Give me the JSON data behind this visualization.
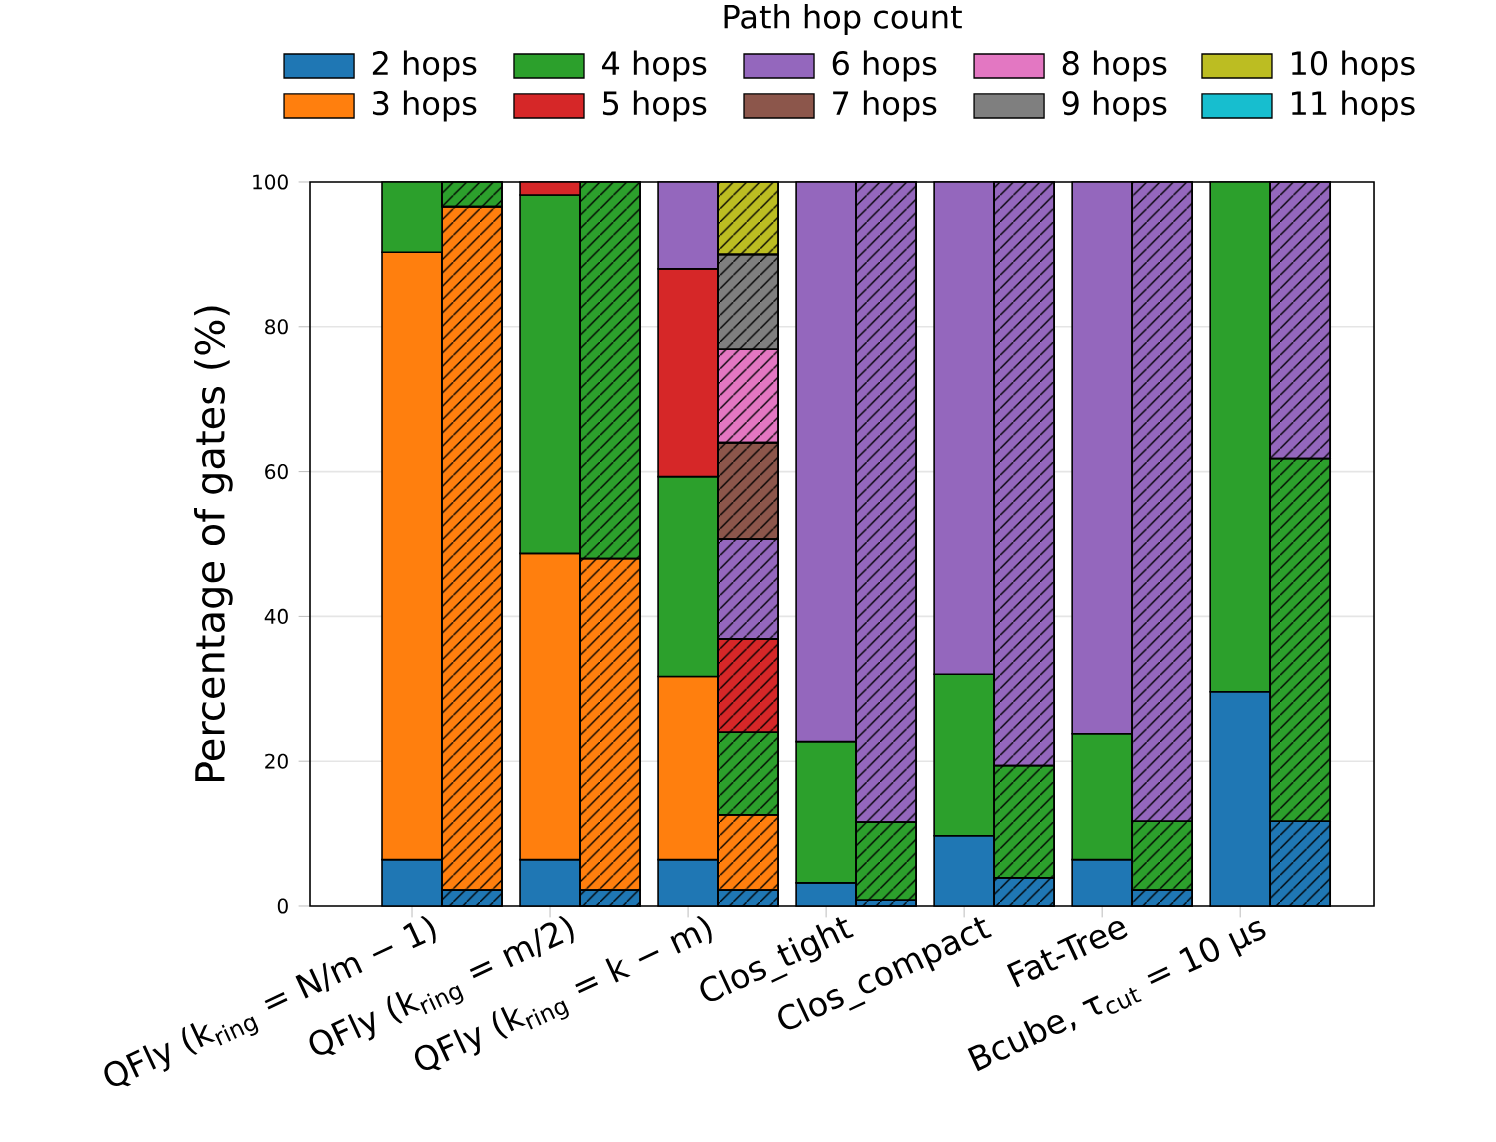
{
  "chart_data": {
    "type": "bar",
    "stacked": true,
    "ylabel": "Percentage of gates (%)",
    "legend_title": "Path hop count",
    "legend": "top",
    "grid": "y",
    "categories": [
      "QFly (k$_{ring}$ = N/m − 1)",
      null,
      "QFly (k$_{ring}$ = m/2)",
      null,
      "QFly (k$_{ring}$ = k − m)",
      null,
      "Clos_tight",
      null,
      "Clos_compact",
      null,
      "Fat-Tree",
      null,
      "Bcube, τ$_{cut}$ = 10 μs",
      null
    ],
    "ylim": [
      0,
      100
    ],
    "yticks": [
      0,
      20,
      40,
      60,
      80,
      100
    ],
    "series": [
      {
        "name": "2 hops",
        "color": "#1f77b4",
        "values": [
          6.4,
          2.2,
          6.4,
          2.2,
          6.4,
          2.2,
          3.2,
          0.8,
          9.7,
          3.9,
          6.4,
          2.2,
          29.6,
          11.7
        ]
      },
      {
        "name": "3 hops",
        "color": "#ff7f0e",
        "values": [
          83.9,
          94.4,
          42.3,
          45.8,
          25.3,
          10.4,
          null,
          null,
          null,
          null,
          null,
          null,
          null,
          null
        ]
      },
      {
        "name": "4 hops",
        "color": "#2ca02c",
        "values": [
          9.7,
          3.4,
          49.5,
          52.0,
          27.6,
          11.4,
          19.5,
          10.8,
          22.3,
          15.5,
          17.4,
          9.5,
          70.4,
          50.1
        ]
      },
      {
        "name": "5 hops",
        "color": "#d62728",
        "values": [
          null,
          null,
          1.8,
          null,
          28.7,
          12.9,
          null,
          null,
          null,
          null,
          null,
          null,
          null,
          null
        ]
      },
      {
        "name": "6 hops",
        "color": "#9467bd",
        "values": [
          null,
          null,
          null,
          null,
          12.0,
          13.8,
          77.3,
          88.4,
          68.0,
          80.6,
          76.2,
          88.3,
          null,
          38.2
        ]
      },
      {
        "name": "7 hops",
        "color": "#8c564b",
        "values": [
          null,
          null,
          null,
          null,
          null,
          13.3,
          null,
          null,
          null,
          null,
          null,
          null,
          null,
          null
        ]
      },
      {
        "name": "8 hops",
        "color": "#e377c2",
        "values": [
          null,
          null,
          null,
          null,
          null,
          12.9,
          null,
          null,
          null,
          null,
          null,
          null,
          null,
          null
        ]
      },
      {
        "name": "9 hops",
        "color": "#7f7f7f",
        "values": [
          null,
          null,
          null,
          null,
          null,
          13.1,
          null,
          null,
          null,
          null,
          null,
          null,
          null,
          null
        ]
      },
      {
        "name": "10 hops",
        "color": "#bcbd22",
        "values": [
          null,
          null,
          null,
          null,
          null,
          10.0,
          null,
          null,
          null,
          null,
          null,
          null,
          null,
          null
        ]
      },
      {
        "name": "11 hops",
        "color": "#17becf",
        "values": [
          null,
          null,
          null,
          null,
          null,
          null,
          null,
          null,
          null,
          null,
          null,
          null,
          null,
          null
        ]
      }
    ]
  }
}
